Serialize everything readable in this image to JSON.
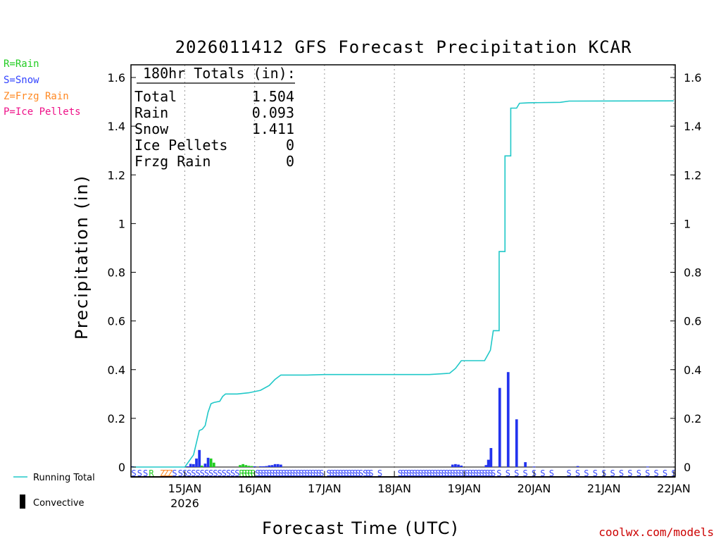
{
  "chart_data": {
    "type": "bar+line",
    "title": "2026011412 GFS Forecast Precipitation KCAR",
    "xlabel": "Forecast Time (UTC)",
    "ylabel": "Precipitation (in)",
    "ylim": [
      0,
      1.6
    ],
    "yticks": [
      "0",
      "0.2",
      "0.4",
      "0.6",
      "0.8",
      "1",
      "1.2",
      "1.4",
      "1.6"
    ],
    "x_range_hours": [
      -6.5,
      180.5
    ],
    "x_ticks": [
      {
        "label": "15JAN",
        "hour": 12,
        "sub": "2026"
      },
      {
        "label": "16JAN",
        "hour": 36,
        "sub": ""
      },
      {
        "label": "17JAN",
        "hour": 60,
        "sub": ""
      },
      {
        "label": "18JAN",
        "hour": 84,
        "sub": ""
      },
      {
        "label": "19JAN",
        "hour": 108,
        "sub": ""
      },
      {
        "label": "20JAN",
        "hour": 132,
        "sub": ""
      },
      {
        "label": "21JAN",
        "hour": 156,
        "sub": ""
      },
      {
        "label": "22JAN",
        "hour": 180,
        "sub": ""
      }
    ],
    "running_total": {
      "name": "Running Total",
      "color": "#20c8c8",
      "points": [
        [
          -6,
          0
        ],
        [
          12,
          0
        ],
        [
          15,
          0.05
        ],
        [
          16,
          0.1
        ],
        [
          17,
          0.15
        ],
        [
          18,
          0.155
        ],
        [
          19,
          0.17
        ],
        [
          20,
          0.225
        ],
        [
          21,
          0.26
        ],
        [
          22,
          0.265
        ],
        [
          24,
          0.27
        ],
        [
          25,
          0.29
        ],
        [
          26,
          0.3
        ],
        [
          30,
          0.3
        ],
        [
          34,
          0.305
        ],
        [
          38,
          0.315
        ],
        [
          41,
          0.335
        ],
        [
          43,
          0.36
        ],
        [
          45,
          0.378
        ],
        [
          54,
          0.378
        ],
        [
          60,
          0.38
        ],
        [
          96,
          0.38
        ],
        [
          103,
          0.385
        ],
        [
          105,
          0.405
        ],
        [
          107,
          0.437
        ],
        [
          115,
          0.437
        ],
        [
          117,
          0.48
        ],
        [
          118,
          0.56
        ],
        [
          120,
          0.56
        ],
        [
          120,
          0.885
        ],
        [
          122,
          0.885
        ],
        [
          122,
          1.278
        ],
        [
          124,
          1.278
        ],
        [
          124,
          1.474
        ],
        [
          126,
          1.474
        ],
        [
          127,
          1.494
        ],
        [
          130,
          1.496
        ],
        [
          141,
          1.498
        ],
        [
          144,
          1.503
        ],
        [
          180,
          1.504
        ]
      ]
    },
    "interval_precip": {
      "bars": [
        {
          "hour": -6.0,
          "value": 0.003,
          "kind": "snow"
        },
        {
          "hour": 13.0,
          "value": 0.003,
          "kind": "snow"
        },
        {
          "hour": 14.0,
          "value": 0.013,
          "kind": "snow"
        },
        {
          "hour": 15.0,
          "value": 0.012,
          "kind": "snow"
        },
        {
          "hour": 16.0,
          "value": 0.035,
          "kind": "snow"
        },
        {
          "hour": 17.0,
          "value": 0.07,
          "kind": "snow"
        },
        {
          "hour": 17.8,
          "value": 0.006,
          "kind": "rain"
        },
        {
          "hour": 19.0,
          "value": 0.014,
          "kind": "snow"
        },
        {
          "hour": 20.0,
          "value": 0.038,
          "kind": "snow"
        },
        {
          "hour": 21.0,
          "value": 0.035,
          "kind": "rain"
        },
        {
          "hour": 22.0,
          "value": 0.018,
          "kind": "rain"
        },
        {
          "hour": 31.0,
          "value": 0.008,
          "kind": "rain"
        },
        {
          "hour": 32.0,
          "value": 0.012,
          "kind": "rain"
        },
        {
          "hour": 33.0,
          "value": 0.008,
          "kind": "rain"
        },
        {
          "hour": 34.0,
          "value": 0.005,
          "kind": "rain"
        },
        {
          "hour": 35.0,
          "value": 0.004,
          "kind": "rain"
        },
        {
          "hour": 36.0,
          "value": 0.003,
          "kind": "snow"
        },
        {
          "hour": 38.0,
          "value": 0.003,
          "kind": "snow"
        },
        {
          "hour": 39.0,
          "value": 0.003,
          "kind": "snow"
        },
        {
          "hour": 40.0,
          "value": 0.004,
          "kind": "snow"
        },
        {
          "hour": 41.0,
          "value": 0.007,
          "kind": "snow"
        },
        {
          "hour": 42.0,
          "value": 0.008,
          "kind": "snow"
        },
        {
          "hour": 43.0,
          "value": 0.012,
          "kind": "snow"
        },
        {
          "hour": 44.0,
          "value": 0.012,
          "kind": "snow"
        },
        {
          "hour": 45.0,
          "value": 0.01,
          "kind": "snow"
        },
        {
          "hour": 104.0,
          "value": 0.01,
          "kind": "snow"
        },
        {
          "hour": 105.0,
          "value": 0.012,
          "kind": "snow"
        },
        {
          "hour": 106.0,
          "value": 0.01,
          "kind": "snow"
        },
        {
          "hour": 107.0,
          "value": 0.006,
          "kind": "snow"
        },
        {
          "hour": 115.5,
          "value": 0.008,
          "kind": "snow"
        },
        {
          "hour": 116.3,
          "value": 0.03,
          "kind": "snow"
        },
        {
          "hour": 117.2,
          "value": 0.078,
          "kind": "snow"
        },
        {
          "hour": 120.2,
          "value": 0.325,
          "kind": "snow"
        },
        {
          "hour": 123.1,
          "value": 0.39,
          "kind": "snow"
        },
        {
          "hour": 126.0,
          "value": 0.196,
          "kind": "snow"
        },
        {
          "hour": 129.0,
          "value": 0.02,
          "kind": "snow"
        },
        {
          "hour": 132.0,
          "value": 0.002,
          "kind": "snow"
        },
        {
          "hour": 147.0,
          "value": 0.004,
          "kind": "snow"
        },
        {
          "hour": 171.0,
          "value": 0.002,
          "kind": "snow"
        }
      ]
    },
    "totals_panel": {
      "header": "180hr Totals (in):",
      "rows": [
        {
          "label": "Total",
          "value": "1.504"
        },
        {
          "label": "Rain",
          "value": "0.093"
        },
        {
          "label": "Snow",
          "value": "1.411"
        },
        {
          "label": "Ice Pellets",
          "value": "0"
        },
        {
          "label": "Frzg Rain",
          "value": "0"
        }
      ]
    },
    "precip_type_legend": [
      {
        "text": "R=Rain",
        "color": "#22cc22"
      },
      {
        "text": "S=Snow",
        "color": "#3344ff"
      },
      {
        "text": "Z=Frzg Rain",
        "color": "#ff8822"
      },
      {
        "text": "P=Ice Pellets",
        "color": "#ee1188"
      }
    ],
    "bottom_legend": {
      "running_total": "Running Total",
      "convective": "Convective"
    },
    "type_strip": [
      {
        "hour": -5.5,
        "code": "S"
      },
      {
        "hour": -3.5,
        "code": "S"
      },
      {
        "hour": -1.5,
        "code": "S"
      },
      {
        "hour": 0.5,
        "code": "R"
      },
      {
        "hour": 4.3,
        "code": "Z"
      },
      {
        "hour": 5.6,
        "code": "Z"
      },
      {
        "hour": 7.0,
        "code": "Z"
      },
      {
        "hour": 8.5,
        "code": "S"
      },
      {
        "hour": 10.5,
        "code": "S"
      },
      {
        "hour": 12.0,
        "code": "S"
      },
      {
        "hour": 13.5,
        "code": "S"
      },
      {
        "hour": 15.0,
        "code": "S"
      },
      {
        "hour": 16.5,
        "code": "S"
      },
      {
        "hour": 18.0,
        "code": "S"
      },
      {
        "hour": 19.5,
        "code": "S"
      },
      {
        "hour": 21.0,
        "code": "S"
      },
      {
        "hour": 22.5,
        "code": "S"
      },
      {
        "hour": 24.0,
        "code": "S"
      },
      {
        "hour": 25.5,
        "code": "S"
      },
      {
        "hour": 27.0,
        "code": "S"
      },
      {
        "hour": 28.5,
        "code": "S"
      },
      {
        "hour": 30.0,
        "code": "S"
      },
      {
        "hour": 31.5,
        "code": "R"
      },
      {
        "hour": 32.5,
        "code": "R"
      },
      {
        "hour": 33.5,
        "code": "R"
      },
      {
        "hour": 34.5,
        "code": "R"
      },
      {
        "hour": 35.5,
        "code": "R"
      },
      {
        "hour": 37.0,
        "code": "S"
      },
      {
        "hour": 38.0,
        "code": "S"
      },
      {
        "hour": 39.0,
        "code": "S"
      },
      {
        "hour": 40.0,
        "code": "S"
      },
      {
        "hour": 41.0,
        "code": "S"
      },
      {
        "hour": 42.0,
        "code": "S"
      },
      {
        "hour": 43.0,
        "code": "S"
      },
      {
        "hour": 44.0,
        "code": "S"
      },
      {
        "hour": 45.0,
        "code": "S"
      },
      {
        "hour": 46.0,
        "code": "S"
      },
      {
        "hour": 47.0,
        "code": "S"
      },
      {
        "hour": 48.0,
        "code": "S"
      },
      {
        "hour": 49.0,
        "code": "S"
      },
      {
        "hour": 50.0,
        "code": "S"
      },
      {
        "hour": 51.0,
        "code": "S"
      },
      {
        "hour": 52.0,
        "code": "S"
      },
      {
        "hour": 53.0,
        "code": "S"
      },
      {
        "hour": 54.0,
        "code": "S"
      },
      {
        "hour": 55.0,
        "code": "S"
      },
      {
        "hour": 56.0,
        "code": "S"
      },
      {
        "hour": 57.0,
        "code": "S"
      },
      {
        "hour": 58.0,
        "code": "S"
      },
      {
        "hour": 59.0,
        "code": "S"
      },
      {
        "hour": 61.5,
        "code": "S"
      },
      {
        "hour": 62.5,
        "code": "S"
      },
      {
        "hour": 63.5,
        "code": "S"
      },
      {
        "hour": 64.5,
        "code": "S"
      },
      {
        "hour": 65.5,
        "code": "S"
      },
      {
        "hour": 66.5,
        "code": "S"
      },
      {
        "hour": 67.5,
        "code": "S"
      },
      {
        "hour": 68.5,
        "code": "S"
      },
      {
        "hour": 69.5,
        "code": "S"
      },
      {
        "hour": 70.5,
        "code": "S"
      },
      {
        "hour": 71.5,
        "code": "S"
      },
      {
        "hour": 72.5,
        "code": "S"
      },
      {
        "hour": 74.0,
        "code": "S"
      },
      {
        "hour": 75.0,
        "code": "S"
      },
      {
        "hour": 76.0,
        "code": "S"
      },
      {
        "hour": 79.0,
        "code": "S"
      },
      {
        "hour": 86.0,
        "code": "S"
      },
      {
        "hour": 87.0,
        "code": "S"
      },
      {
        "hour": 88.0,
        "code": "S"
      },
      {
        "hour": 89.0,
        "code": "S"
      },
      {
        "hour": 90.0,
        "code": "S"
      },
      {
        "hour": 91.0,
        "code": "S"
      },
      {
        "hour": 92.0,
        "code": "S"
      },
      {
        "hour": 93.0,
        "code": "S"
      },
      {
        "hour": 94.0,
        "code": "S"
      },
      {
        "hour": 95.0,
        "code": "S"
      },
      {
        "hour": 96.0,
        "code": "S"
      },
      {
        "hour": 97.0,
        "code": "S"
      },
      {
        "hour": 98.0,
        "code": "S"
      },
      {
        "hour": 99.0,
        "code": "S"
      },
      {
        "hour": 100.0,
        "code": "S"
      },
      {
        "hour": 101.0,
        "code": "S"
      },
      {
        "hour": 102.0,
        "code": "S"
      },
      {
        "hour": 103.0,
        "code": "S"
      },
      {
        "hour": 104.0,
        "code": "S"
      },
      {
        "hour": 105.0,
        "code": "S"
      },
      {
        "hour": 106.0,
        "code": "S"
      },
      {
        "hour": 107.0,
        "code": "S"
      },
      {
        "hour": 108.0,
        "code": "S"
      },
      {
        "hour": 109.0,
        "code": "S"
      },
      {
        "hour": 110.0,
        "code": "S"
      },
      {
        "hour": 111.0,
        "code": "S"
      },
      {
        "hour": 112.0,
        "code": "S"
      },
      {
        "hour": 113.0,
        "code": "S"
      },
      {
        "hour": 114.0,
        "code": "S"
      },
      {
        "hour": 115.0,
        "code": "S"
      },
      {
        "hour": 116.0,
        "code": "S"
      },
      {
        "hour": 117.0,
        "code": "S"
      },
      {
        "hour": 118.0,
        "code": "S"
      },
      {
        "hour": 120.0,
        "code": "S"
      },
      {
        "hour": 123.0,
        "code": "S"
      },
      {
        "hour": 126.0,
        "code": "S"
      },
      {
        "hour": 129.0,
        "code": "S"
      },
      {
        "hour": 132.0,
        "code": "S"
      },
      {
        "hour": 135.0,
        "code": "S"
      },
      {
        "hour": 138.0,
        "code": "S"
      },
      {
        "hour": 144.0,
        "code": "S"
      },
      {
        "hour": 147.0,
        "code": "S"
      },
      {
        "hour": 150.0,
        "code": "S"
      },
      {
        "hour": 153.0,
        "code": "S"
      },
      {
        "hour": 156.0,
        "code": "S"
      },
      {
        "hour": 159.0,
        "code": "S"
      },
      {
        "hour": 162.0,
        "code": "S"
      },
      {
        "hour": 165.0,
        "code": "S"
      },
      {
        "hour": 168.0,
        "code": "S"
      },
      {
        "hour": 171.0,
        "code": "S"
      },
      {
        "hour": 174.0,
        "code": "S"
      },
      {
        "hour": 177.0,
        "code": "S"
      },
      {
        "hour": 180.0,
        "code": "S"
      }
    ],
    "colors": {
      "snow": "#2233ee",
      "rain": "#22cc22",
      "line": "#20c8c8",
      "grid": "#999999"
    }
  },
  "credit": "coolwx.com/models"
}
